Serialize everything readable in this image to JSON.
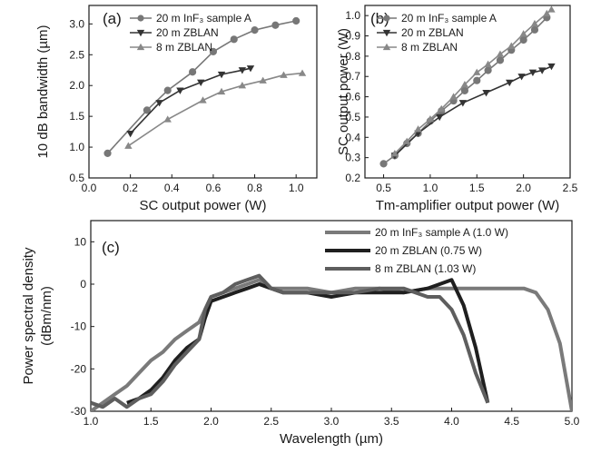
{
  "chart_data": [
    {
      "type": "line",
      "panel_label": "(a)",
      "xlabel": "SC output power (W)",
      "ylabel": "10 dB bandwidth (µm)",
      "xlim": [
        0.0,
        1.1
      ],
      "ylim": [
        0.5,
        3.3
      ],
      "xticks": [
        "0.0",
        "0.2",
        "0.4",
        "0.6",
        "0.8",
        "1.0"
      ],
      "yticks": [
        "0.5",
        "1.0",
        "1.5",
        "2.0",
        "2.5",
        "3.0"
      ],
      "legend_position": "top-left",
      "series": [
        {
          "name": "20 m InF₃ sample A",
          "marker": "circle",
          "color": "#777777",
          "x": [
            0.09,
            0.28,
            0.38,
            0.5,
            0.6,
            0.7,
            0.8,
            0.9,
            1.0
          ],
          "y": [
            0.9,
            1.6,
            1.92,
            2.22,
            2.55,
            2.75,
            2.9,
            2.98,
            3.05
          ]
        },
        {
          "name": "20 m ZBLAN",
          "marker": "triangle-down",
          "color": "#333333",
          "x": [
            0.2,
            0.34,
            0.44,
            0.54,
            0.64,
            0.74,
            0.78
          ],
          "y": [
            1.22,
            1.72,
            1.92,
            2.05,
            2.18,
            2.25,
            2.28
          ]
        },
        {
          "name": "8 m ZBLAN",
          "marker": "triangle-up",
          "color": "#888888",
          "x": [
            0.19,
            0.38,
            0.55,
            0.64,
            0.74,
            0.84,
            0.94,
            1.03
          ],
          "y": [
            1.02,
            1.45,
            1.76,
            1.9,
            2.0,
            2.08,
            2.17,
            2.2
          ]
        }
      ]
    },
    {
      "type": "line",
      "panel_label": "(b)",
      "xlabel": "Tm-amplifier output power (W)",
      "ylabel": "SC output power (W)",
      "xlim": [
        0.3,
        2.5
      ],
      "ylim": [
        0.2,
        1.05
      ],
      "xticks": [
        "0.5",
        "1.0",
        "1.5",
        "2.0",
        "2.5"
      ],
      "yticks": [
        "0.2",
        "0.3",
        "0.4",
        "0.5",
        "0.6",
        "0.7",
        "0.8",
        "0.9",
        "1.0"
      ],
      "legend_position": "top-left",
      "series": [
        {
          "name": "20 m InF₃ sample A",
          "marker": "circle",
          "color": "#777777",
          "x": [
            0.5,
            0.62,
            0.75,
            0.87,
            1.0,
            1.12,
            1.25,
            1.37,
            1.5,
            1.62,
            1.75,
            1.87,
            2.0,
            2.12,
            2.25
          ],
          "y": [
            0.27,
            0.31,
            0.37,
            0.42,
            0.48,
            0.53,
            0.58,
            0.63,
            0.68,
            0.73,
            0.78,
            0.83,
            0.88,
            0.93,
            0.99
          ]
        },
        {
          "name": "20 m ZBLAN",
          "marker": "triangle-down",
          "color": "#333333",
          "x": [
            0.62,
            0.87,
            1.1,
            1.35,
            1.6,
            1.85,
            1.98,
            2.1,
            2.2,
            2.3
          ],
          "y": [
            0.31,
            0.42,
            0.5,
            0.57,
            0.62,
            0.67,
            0.7,
            0.72,
            0.73,
            0.75
          ]
        },
        {
          "name": "8 m ZBLAN",
          "marker": "triangle-up",
          "color": "#888888",
          "x": [
            0.62,
            0.75,
            0.87,
            1.0,
            1.12,
            1.25,
            1.37,
            1.5,
            1.62,
            1.75,
            1.87,
            2.0,
            2.12,
            2.25,
            2.3
          ],
          "y": [
            0.32,
            0.38,
            0.44,
            0.49,
            0.54,
            0.6,
            0.66,
            0.72,
            0.76,
            0.81,
            0.85,
            0.91,
            0.96,
            1.01,
            1.03
          ]
        }
      ]
    },
    {
      "type": "line",
      "panel_label": "(c)",
      "xlabel": "Wavelength (µm)",
      "ylabel": [
        "Power spectral density",
        "(dBm/nm)"
      ],
      "xlim": [
        1.0,
        5.0
      ],
      "ylim": [
        -30,
        15
      ],
      "xticks": [
        "1.0",
        "1.5",
        "2.0",
        "2.5",
        "3.0",
        "3.5",
        "4.0",
        "4.5",
        "5.0"
      ],
      "yticks": [
        "-30",
        "-20",
        "-10",
        "0",
        "10"
      ],
      "legend_position": "top-right",
      "series": [
        {
          "name": "20 m InF₃ sample A (1.0 W)",
          "color": "#7a7a7a",
          "width": 4,
          "x": [
            1.0,
            1.1,
            1.2,
            1.3,
            1.4,
            1.5,
            1.6,
            1.7,
            1.8,
            1.9,
            1.95,
            2.0,
            2.1,
            2.2,
            2.3,
            2.4,
            2.5,
            2.6,
            2.8,
            3.0,
            3.2,
            3.4,
            3.6,
            3.8,
            4.0,
            4.2,
            4.4,
            4.6,
            4.7,
            4.8,
            4.9,
            4.95,
            5.0
          ],
          "y": [
            -30,
            -28,
            -26,
            -24,
            -21,
            -18,
            -16,
            -13,
            -11,
            -9,
            -6,
            -3,
            -2,
            -1,
            0,
            1,
            -1,
            -1,
            -1,
            -2,
            -1,
            -1,
            -2,
            -1,
            -1,
            -1,
            -1,
            -1,
            -2,
            -6,
            -14,
            -22,
            -30
          ]
        },
        {
          "name": "20 m ZBLAN (0.75 W)",
          "color": "#1f1f1f",
          "width": 4,
          "x": [
            1.3,
            1.4,
            1.5,
            1.6,
            1.7,
            1.8,
            1.9,
            1.95,
            2.0,
            2.1,
            2.2,
            2.3,
            2.4,
            2.5,
            2.6,
            2.8,
            3.0,
            3.2,
            3.4,
            3.6,
            3.8,
            3.9,
            4.0,
            4.1,
            4.2,
            4.3
          ],
          "y": [
            -28,
            -27,
            -25,
            -22,
            -18,
            -15,
            -13,
            -8,
            -4,
            -3,
            -2,
            -1,
            0,
            -1,
            -2,
            -2,
            -3,
            -2,
            -2,
            -2,
            -1,
            0,
            1,
            -5,
            -15,
            -28
          ]
        },
        {
          "name": "8 m ZBLAN (1.03 W)",
          "color": "#5e5e5e",
          "width": 4,
          "x": [
            1.0,
            1.1,
            1.2,
            1.3,
            1.4,
            1.5,
            1.6,
            1.7,
            1.8,
            1.9,
            1.95,
            2.0,
            2.1,
            2.2,
            2.3,
            2.4,
            2.5,
            2.6,
            2.8,
            3.0,
            3.2,
            3.4,
            3.6,
            3.7,
            3.8,
            3.9,
            4.0,
            4.1,
            4.2,
            4.3
          ],
          "y": [
            -28,
            -29,
            -27,
            -29,
            -27,
            -26,
            -23,
            -19,
            -16,
            -13,
            -6,
            -3,
            -2,
            0,
            1,
            2,
            -1,
            -2,
            -2,
            -2,
            -2,
            -1,
            -1,
            -2,
            -3,
            -3,
            -6,
            -12,
            -21,
            -28
          ]
        }
      ]
    }
  ]
}
